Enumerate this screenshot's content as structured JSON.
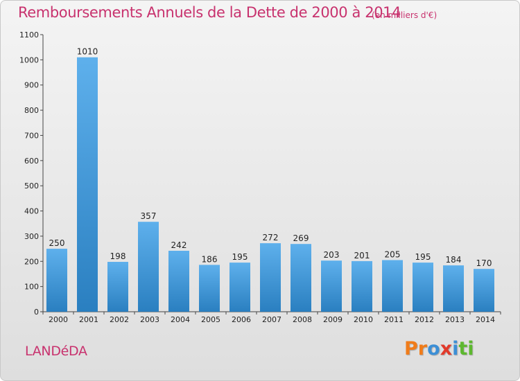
{
  "header": {
    "title": "Remboursements Annuels de la Dette de 2000 à 2014",
    "subtitle": "(en milliers d'€)"
  },
  "footer": {
    "commune": "LANDéDA",
    "logo_text": "Proxiti"
  },
  "colors": {
    "title": "#c8326e",
    "bar_light": "#5eb0ec",
    "bar_dark": "#2a7fc0",
    "logo_letters": [
      "#f07c1a",
      "#f07c1a",
      "#3c8fd6",
      "#e23a2b",
      "#3c8fd6",
      "#5db82f",
      "#5db82f"
    ]
  },
  "chart_data": {
    "type": "bar",
    "categories": [
      "2000",
      "2001",
      "2002",
      "2003",
      "2004",
      "2005",
      "2006",
      "2007",
      "2008",
      "2009",
      "2010",
      "2011",
      "2012",
      "2013",
      "2014"
    ],
    "values": [
      250,
      1010,
      198,
      357,
      242,
      186,
      195,
      272,
      269,
      203,
      201,
      205,
      195,
      184,
      170
    ],
    "ylim": [
      0,
      1100
    ],
    "yticks": [
      0,
      100,
      200,
      300,
      400,
      500,
      600,
      700,
      800,
      900,
      1000,
      1100
    ],
    "data_labels": true,
    "grid": false,
    "legend": "none"
  }
}
